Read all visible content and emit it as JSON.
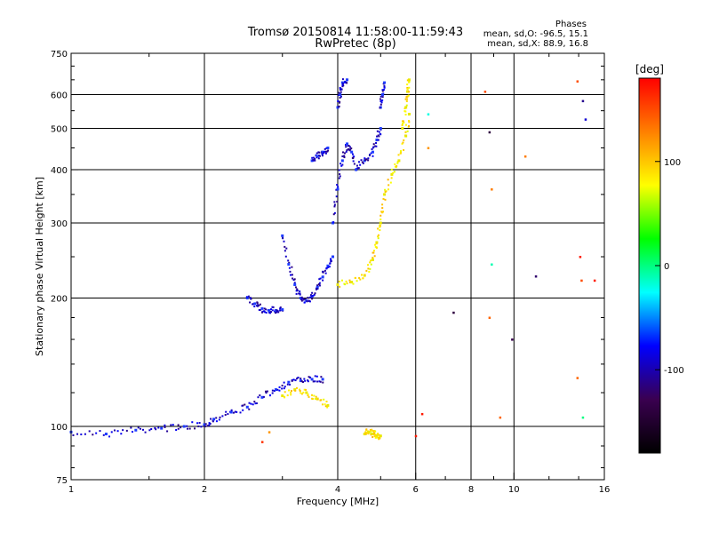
{
  "header": {
    "title_line1": "Tromsø 20150814 11:58:00-11:59:43",
    "title_line2": "RwPretec (8p)"
  },
  "phases_box": {
    "heading": "Phases",
    "line1": "mean, sd,O:  -96.5, 15.1",
    "line2": "mean, sd,X:   88.9, 16.8"
  },
  "colorbar": {
    "label": "[deg]",
    "ticks": [
      "100",
      "0",
      "-100"
    ],
    "tick_values": [
      100,
      0,
      -100
    ],
    "range": [
      -180,
      180
    ],
    "colors": [
      "#ff0000",
      "#ff8000",
      "#ffff00",
      "#00ff00",
      "#00ffff",
      "#0000ff",
      "#3a0050",
      "#000000"
    ]
  },
  "chart_data": {
    "type": "scatter",
    "title": "Tromsø 20150814 11:58:00-11:59:43",
    "subtitle": "RwPretec (8p)",
    "xlabel": "Frequency [MHz]",
    "ylabel": "Stationary phase Virtual Height [km]",
    "x_scale": "log2",
    "y_scale": "log",
    "xlim": [
      1,
      16
    ],
    "ylim": [
      75,
      750
    ],
    "x_ticks": [
      1,
      2,
      4,
      6,
      8,
      10,
      16
    ],
    "y_ticks": [
      75,
      100,
      200,
      300,
      400,
      500,
      600,
      750
    ],
    "x_major_grid": [
      2,
      4,
      6,
      8,
      10
    ],
    "y_major_grid": [
      100,
      200,
      300,
      400,
      500,
      600
    ],
    "grid": true,
    "series": [
      {
        "polarization": "O",
        "color_value": -96.5,
        "color": "#1e3cff",
        "segments": [
          {
            "x": [
              1.0,
              1.2,
              1.4,
              1.6,
              1.8,
              2.0,
              2.1,
              2.3,
              2.5,
              2.7,
              2.9,
              3.1,
              3.3,
              3.5,
              3.7
            ],
            "y": [
              97,
              96,
              98,
              99,
              100,
              101,
              104,
              108,
              111,
              117,
              122,
              127,
              128,
              129,
              129
            ]
          },
          {
            "x": [
              2.5,
              2.6,
              2.7,
              2.8,
              2.9,
              3.0
            ],
            "y": [
              200,
              194,
              189,
              187,
              187,
              188
            ]
          },
          {
            "x": [
              3.0,
              3.1,
              3.2,
              3.3,
              3.4,
              3.5,
              3.6,
              3.7,
              3.8,
              3.9
            ],
            "y": [
              280,
              240,
              215,
              200,
              197,
              202,
              212,
              224,
              238,
              250
            ]
          },
          {
            "x": [
              3.9,
              4.0,
              4.1,
              4.2,
              4.3,
              4.4,
              4.6,
              4.8,
              4.9,
              5.0
            ],
            "y": [
              300,
              360,
              420,
              460,
              440,
              400,
              420,
              440,
              470,
              500
            ]
          },
          {
            "x": [
              4.0,
              4.05,
              4.1,
              4.2
            ],
            "y": [
              560,
              600,
              640,
              650
            ]
          },
          {
            "x": [
              5.0,
              5.05,
              5.1
            ],
            "y": [
              560,
              600,
              640
            ]
          },
          {
            "x": [
              3.5,
              3.6,
              3.7,
              3.8
            ],
            "y": [
              420,
              430,
              440,
              450
            ]
          }
        ]
      },
      {
        "polarization": "X",
        "color_value": 88.9,
        "color": "#e8e800",
        "segments": [
          {
            "x": [
              4.0,
              4.3,
              4.6,
              4.8,
              4.9,
              5.0,
              5.1,
              5.3,
              5.5,
              5.7,
              5.8
            ],
            "y": [
              215,
              218,
              226,
              246,
              270,
              300,
              350,
              390,
              420,
              480,
              540
            ]
          },
          {
            "x": [
              5.6,
              5.7,
              5.75,
              5.8
            ],
            "y": [
              500,
              560,
              610,
              650
            ]
          },
          {
            "x": [
              3.0,
              3.2,
              3.4,
              3.6,
              3.8
            ],
            "y": [
              118,
              122,
              120,
              116,
              112
            ]
          },
          {
            "x": [
              4.6,
              4.7,
              4.8,
              4.9,
              5.0
            ],
            "y": [
              96,
              97,
              96,
              95,
              95
            ]
          }
        ]
      }
    ],
    "scattered_points": [
      {
        "x": 6.4,
        "y": 540,
        "v": -20
      },
      {
        "x": 6.4,
        "y": 450,
        "v": 120
      },
      {
        "x": 8.6,
        "y": 610,
        "v": 150
      },
      {
        "x": 8.8,
        "y": 490,
        "v": -140
      },
      {
        "x": 8.9,
        "y": 360,
        "v": 130
      },
      {
        "x": 8.9,
        "y": 240,
        "v": -10
      },
      {
        "x": 8.8,
        "y": 180,
        "v": 140
      },
      {
        "x": 9.3,
        "y": 105,
        "v": 140
      },
      {
        "x": 9.9,
        "y": 160,
        "v": -130
      },
      {
        "x": 10.6,
        "y": 430,
        "v": 130
      },
      {
        "x": 11.2,
        "y": 225,
        "v": -120
      },
      {
        "x": 13.9,
        "y": 645,
        "v": 150
      },
      {
        "x": 14.3,
        "y": 580,
        "v": -110
      },
      {
        "x": 14.5,
        "y": 525,
        "v": -90
      },
      {
        "x": 14.1,
        "y": 250,
        "v": 170
      },
      {
        "x": 14.2,
        "y": 220,
        "v": 150
      },
      {
        "x": 14.3,
        "y": 105,
        "v": 0
      },
      {
        "x": 13.9,
        "y": 130,
        "v": 140
      },
      {
        "x": 15.2,
        "y": 220,
        "v": 170
      },
      {
        "x": 6.2,
        "y": 107,
        "v": 170
      },
      {
        "x": 6.0,
        "y": 95,
        "v": 170
      },
      {
        "x": 7.3,
        "y": 185,
        "v": -140
      },
      {
        "x": 2.7,
        "y": 92,
        "v": 160
      },
      {
        "x": 2.8,
        "y": 97,
        "v": 120
      }
    ]
  }
}
